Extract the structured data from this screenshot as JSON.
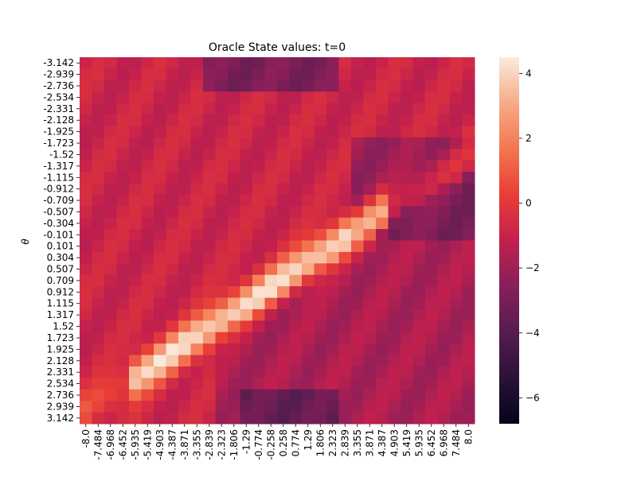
{
  "chart_data": {
    "type": "heatmap",
    "title": "Oracle State values: t=0",
    "ylabel": "θ",
    "xlabel": "",
    "x_tick_labels": [
      "-8.0",
      "-7.484",
      "-6.968",
      "-6.452",
      "-5.935",
      "-5.419",
      "-4.903",
      "-4.387",
      "-3.871",
      "-3.355",
      "-2.839",
      "-2.323",
      "-1.806",
      "-1.29",
      "-0.774",
      "-0.258",
      "0.258",
      "0.774",
      "1.29",
      "1.806",
      "2.323",
      "2.839",
      "3.355",
      "3.871",
      "4.387",
      "4.903",
      "5.419",
      "5.935",
      "6.452",
      "6.968",
      "7.484",
      "8.0"
    ],
    "y_tick_labels": [
      "-3.142",
      "-2.939",
      "-2.736",
      "-2.534",
      "-2.331",
      "-2.128",
      "-1.925",
      "-1.723",
      "-1.52",
      "-1.317",
      "-1.115",
      "-0.912",
      "-0.709",
      "-0.507",
      "-0.304",
      "-0.101",
      "0.101",
      "0.304",
      "0.507",
      "0.709",
      "0.912",
      "1.115",
      "1.317",
      "1.52",
      "1.723",
      "1.925",
      "2.128",
      "2.331",
      "2.534",
      "2.736",
      "2.939",
      "3.142"
    ],
    "colorbar": {
      "vmin": -6.8,
      "vmax": 4.5,
      "ticks": [
        4,
        2,
        0,
        -2,
        -4,
        -6
      ],
      "tick_labels": [
        "4",
        "2",
        "0",
        "−2",
        "−4",
        "−6"
      ]
    },
    "grid": false
  }
}
